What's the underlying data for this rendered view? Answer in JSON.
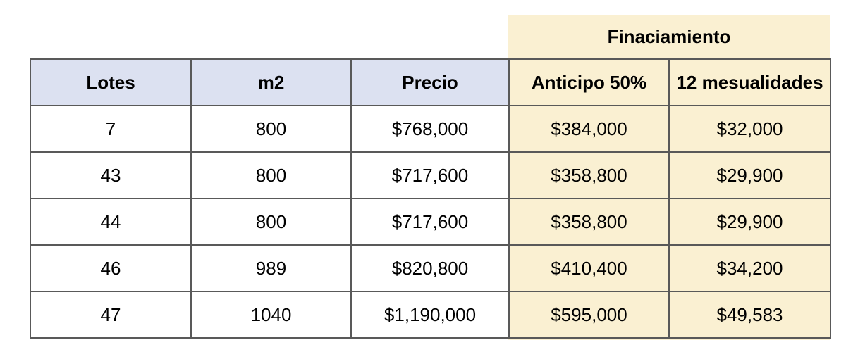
{
  "financing": {
    "title": "Finaciamiento"
  },
  "table": {
    "headers": [
      "Lotes",
      "m2",
      "Precio",
      "Anticipo 50%",
      "12 mesualidades"
    ],
    "rows": [
      [
        "7",
        "800",
        "$768,000",
        "$384,000",
        "$32,000"
      ],
      [
        "43",
        "800",
        "$717,600",
        "$358,800",
        "$29,900"
      ],
      [
        "44",
        "800",
        "$717,600",
        "$358,800",
        "$29,900"
      ],
      [
        "46",
        "989",
        "$820,800",
        "$410,400",
        "$34,200"
      ],
      [
        "47",
        "1040",
        "$1,190,000",
        "$595,000",
        "$49,583"
      ]
    ]
  },
  "colors": {
    "financing_highlight": "#FAF0D2",
    "header_fill": "#DCE1F1",
    "border": "#595959",
    "text": "#000000",
    "page_background": "#FFFFFF"
  }
}
